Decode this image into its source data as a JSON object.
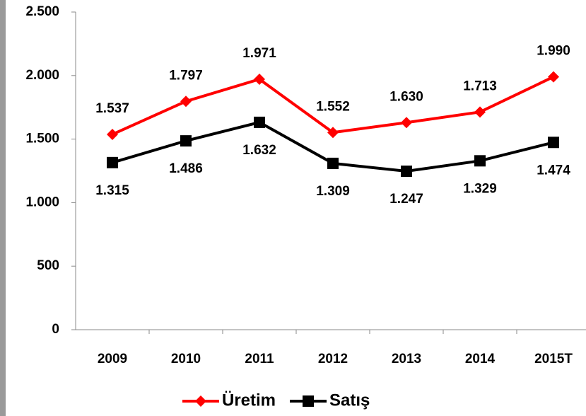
{
  "chart_data": {
    "type": "line",
    "categories": [
      "2009",
      "2010",
      "2011",
      "2012",
      "2013",
      "2014",
      "2015T"
    ],
    "series": [
      {
        "name": "Üretim",
        "color": "#ff0000",
        "marker": "diamond",
        "values": [
          1537,
          1797,
          1971,
          1552,
          1630,
          1713,
          1990
        ],
        "value_labels": [
          "1.537",
          "1.797",
          "1.971",
          "1.552",
          "1.630",
          "1.713",
          "1.990"
        ]
      },
      {
        "name": "Satış",
        "color": "#000000",
        "marker": "square",
        "values": [
          1315,
          1486,
          1632,
          1309,
          1247,
          1329,
          1474
        ],
        "value_labels": [
          "1.315",
          "1.486",
          "1.632",
          "1.309",
          "1.247",
          "1.329",
          "1.474"
        ]
      }
    ],
    "ylim": [
      0,
      2500
    ],
    "yticks": [
      0,
      500,
      {
        "value": 1000,
        "label": "1.000"
      },
      {
        "value": 1500,
        "label": "1.500"
      },
      {
        "value": 2000,
        "label": "2.000"
      },
      {
        "value": 2500,
        "label": "2.500"
      }
    ],
    "grid": false,
    "legend": "bottom"
  }
}
